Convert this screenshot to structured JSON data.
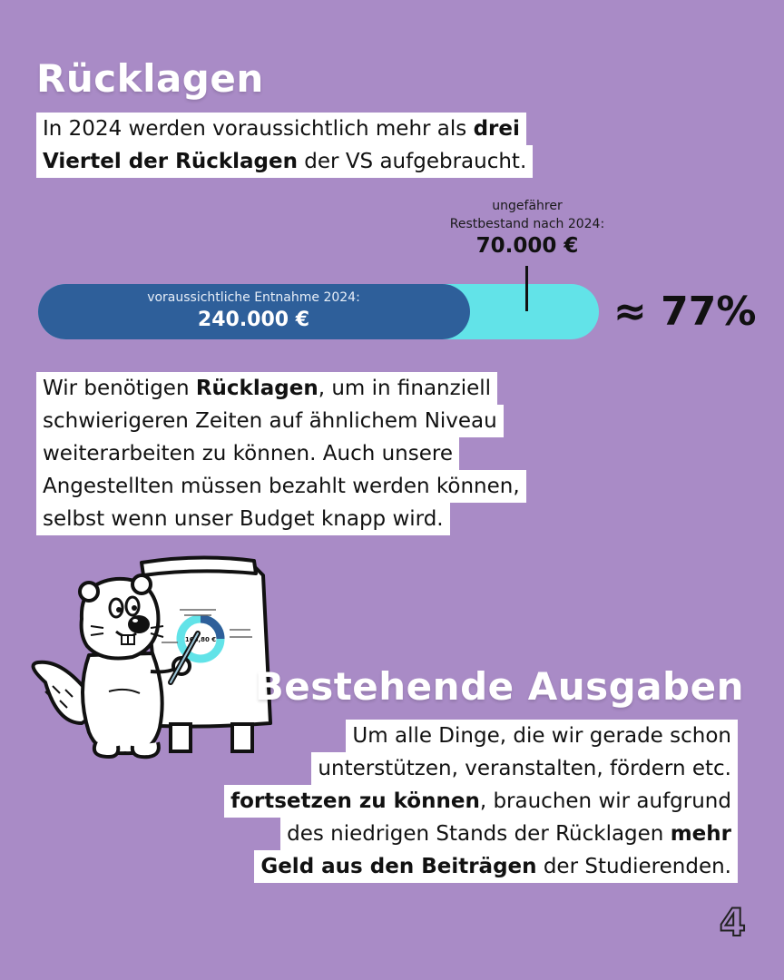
{
  "heading1": "Rücklagen",
  "intro": {
    "line1": {
      "pre": "In 2024 werden voraussichtlich mehr als ",
      "bold": "drei"
    },
    "line2": {
      "bold": "Viertel der Rücklagen",
      "post": " der VS aufgebraucht."
    }
  },
  "bar": {
    "rest_label_line1": "ungefährer",
    "rest_label_line2": "Restbestand nach 2024:",
    "rest_amount": "70.000 €",
    "withdrawal_label": "voraussichtliche Entnahme 2024:",
    "withdrawal_amount": "240.000 €",
    "withdrawal_fraction": 0.77,
    "percent_text": "≈ 77%",
    "colors": {
      "withdrawal": "#2e5f9a",
      "remaining": "#62e3e8"
    }
  },
  "reasons": {
    "line1": {
      "pre": "Wir benötigen ",
      "bold": "Rücklagen",
      "post": ", um in finanziell"
    },
    "line2": "schwierigeren Zeiten auf ähnlichem Niveau",
    "line3": "weiterarbeiten zu können. Auch unsere",
    "line4": "Angestellten müssen bezahlt werden können,",
    "line5": "selbst wenn unser Budget knapp wird."
  },
  "heading2": "Bestehende Ausgaben",
  "existing": {
    "line1": "Um alle Dinge, die wir gerade schon",
    "line2": "unterstützen, veranstalten, fördern etc.",
    "line3": {
      "bold": "fortsetzen zu können",
      "post": ", brauchen wir aufgrund"
    },
    "line4": {
      "pre": "des niedrigen Stands der Rücklagen ",
      "bold": "mehr"
    },
    "line5": {
      "bold": "Geld aus den Beiträgen",
      "post": " der Studierenden."
    }
  },
  "illustration": {
    "icon": "beaver-presenting-chart-icon",
    "chart_center_value": "166,80 €"
  },
  "page_number": "4"
}
